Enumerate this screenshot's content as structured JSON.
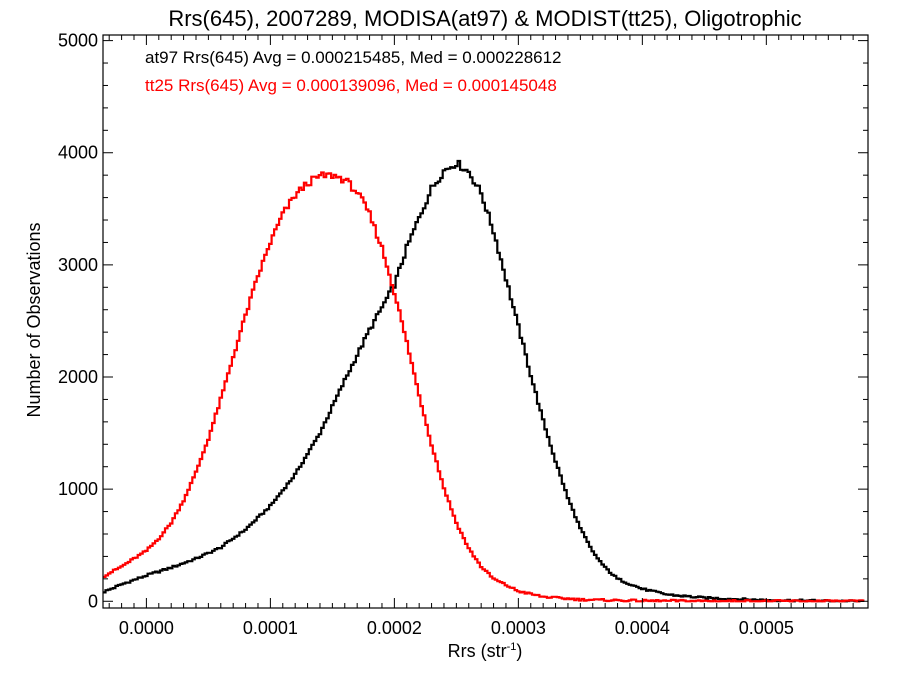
{
  "chart_data": {
    "type": "line",
    "style": "step-histogram",
    "title": "Rrs(645), 2007289, MODISA(at97) & MODIST(tt25), Oligotrophic",
    "xlabel": "Rrs (str",
    "xlabel_sup": "-1",
    "xlabel_end": ")",
    "ylabel": "Number of Observations",
    "xlim": [
      -3.5e-05,
      0.000582
    ],
    "ylim": [
      -60,
      5050
    ],
    "xticks": [
      0.0,
      0.0001,
      0.0002,
      0.0003,
      0.0004,
      0.0005
    ],
    "xtick_labels": [
      "0.0000",
      "0.0001",
      "0.0002",
      "0.0003",
      "0.0004",
      "0.0005"
    ],
    "yticks": [
      0,
      1000,
      2000,
      3000,
      4000,
      5000
    ],
    "ytick_labels": [
      "0",
      "1000",
      "2000",
      "3000",
      "4000",
      "5000"
    ],
    "grid": false,
    "annotations": [
      {
        "text": "at97 Rrs(645) Avg = 0.000215485, Med = 0.000228612",
        "color": "#000000"
      },
      {
        "text": "tt25 Rrs(645) Avg = 0.000139096, Med = 0.000145048",
        "color": "#ff0000"
      }
    ],
    "series": [
      {
        "color": "#000000",
        "points": [
          [
            -3.5e-05,
            80
          ],
          [
            -2e-05,
            150
          ],
          [
            0.0,
            230
          ],
          [
            2e-05,
            300
          ],
          [
            4e-05,
            380
          ],
          [
            6e-05,
            480
          ],
          [
            8e-05,
            640
          ],
          [
            0.0001,
            850
          ],
          [
            0.00012,
            1130
          ],
          [
            0.00014,
            1500
          ],
          [
            0.00016,
            1970
          ],
          [
            0.00018,
            2420
          ],
          [
            0.0002,
            2820
          ],
          [
            0.00021,
            3150
          ],
          [
            0.00022,
            3420
          ],
          [
            0.00023,
            3680
          ],
          [
            0.00024,
            3840
          ],
          [
            0.00025,
            3910
          ],
          [
            0.00026,
            3830
          ],
          [
            0.00027,
            3640
          ],
          [
            0.00028,
            3300
          ],
          [
            0.00029,
            2880
          ],
          [
            0.0003,
            2450
          ],
          [
            0.00031,
            2020
          ],
          [
            0.00032,
            1610
          ],
          [
            0.00033,
            1250
          ],
          [
            0.00034,
            920
          ],
          [
            0.00035,
            650
          ],
          [
            0.00036,
            440
          ],
          [
            0.00037,
            300
          ],
          [
            0.00038,
            200
          ],
          [
            0.0004,
            110
          ],
          [
            0.00042,
            60
          ],
          [
            0.00045,
            30
          ],
          [
            0.0005,
            10
          ],
          [
            0.00055,
            3
          ],
          [
            0.00058,
            0
          ]
        ]
      },
      {
        "color": "#ff0000",
        "points": [
          [
            -3.5e-05,
            220
          ],
          [
            -2e-05,
            310
          ],
          [
            0.0,
            450
          ],
          [
            1e-05,
            560
          ],
          [
            2e-05,
            700
          ],
          [
            3e-05,
            900
          ],
          [
            4e-05,
            1150
          ],
          [
            5e-05,
            1450
          ],
          [
            6e-05,
            1800
          ],
          [
            7e-05,
            2180
          ],
          [
            8e-05,
            2550
          ],
          [
            9e-05,
            2900
          ],
          [
            0.0001,
            3200
          ],
          [
            0.00011,
            3450
          ],
          [
            0.00012,
            3620
          ],
          [
            0.00013,
            3730
          ],
          [
            0.00014,
            3790
          ],
          [
            0.00015,
            3800
          ],
          [
            0.00016,
            3760
          ],
          [
            0.00017,
            3650
          ],
          [
            0.00018,
            3450
          ],
          [
            0.00019,
            3150
          ],
          [
            0.0002,
            2760
          ],
          [
            0.00021,
            2310
          ],
          [
            0.00022,
            1840
          ],
          [
            0.00023,
            1400
          ],
          [
            0.00024,
            1010
          ],
          [
            0.00025,
            700
          ],
          [
            0.00026,
            470
          ],
          [
            0.00027,
            310
          ],
          [
            0.00028,
            200
          ],
          [
            0.0003,
            90
          ],
          [
            0.00032,
            40
          ],
          [
            0.00035,
            15
          ],
          [
            0.0004,
            4
          ],
          [
            0.00058,
            0
          ]
        ]
      }
    ]
  }
}
